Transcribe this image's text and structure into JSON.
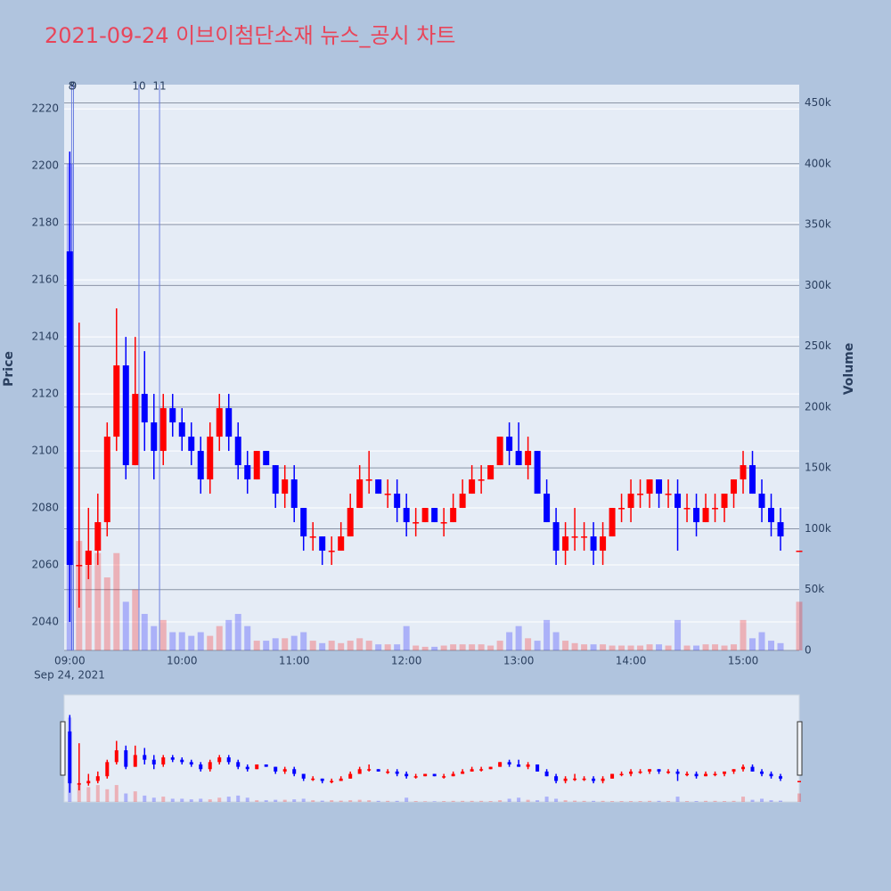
{
  "chart_data": {
    "type": "candlestick",
    "title": "2021-09-24 이브이첨단소재 뉴스_공시 차트",
    "ylabel": "Price",
    "y2label": "Volume",
    "date_label": "Sep 24, 2021",
    "increasing_color": "#ff0000",
    "decreasing_color": "#0000ff",
    "grid": true,
    "xlim": [
      "08:57",
      "15:30"
    ],
    "xticks": [
      "09:00",
      "10:00",
      "11:00",
      "12:00",
      "13:00",
      "14:00",
      "15:00"
    ],
    "ylim": [
      2030,
      2228.5
    ],
    "yticks": [
      2040,
      2060,
      2080,
      2100,
      2120,
      2140,
      2160,
      2180,
      2200,
      2220
    ],
    "y2lim": [
      0,
      465000
    ],
    "y2ticks": [
      0,
      {
        "value": 50000,
        "label": "50k"
      },
      {
        "value": 100000,
        "label": "100k"
      },
      {
        "value": 150000,
        "label": "150k"
      },
      {
        "value": 200000,
        "label": "200k"
      },
      {
        "value": 250000,
        "label": "250k"
      },
      {
        "value": 300000,
        "label": "300k"
      },
      {
        "value": 350000,
        "label": "350k"
      },
      {
        "value": 400000,
        "label": "400k"
      },
      {
        "value": 450000,
        "label": "450k"
      }
    ],
    "annotations": [
      {
        "x": "09:01",
        "label": "8"
      },
      {
        "x": "09:02",
        "label": "9"
      },
      {
        "x": "09:37",
        "label": "10"
      },
      {
        "x": "09:48",
        "label": "11"
      }
    ],
    "x": [
      "09:00",
      "09:05",
      "09:10",
      "09:15",
      "09:20",
      "09:25",
      "09:30",
      "09:35",
      "09:40",
      "09:45",
      "09:50",
      "09:55",
      "10:00",
      "10:05",
      "10:10",
      "10:15",
      "10:20",
      "10:25",
      "10:30",
      "10:35",
      "10:40",
      "10:45",
      "10:50",
      "10:55",
      "11:00",
      "11:05",
      "11:10",
      "11:15",
      "11:20",
      "11:25",
      "11:30",
      "11:35",
      "11:40",
      "11:45",
      "11:50",
      "11:55",
      "12:00",
      "12:05",
      "12:10",
      "12:15",
      "12:20",
      "12:25",
      "12:30",
      "12:35",
      "12:40",
      "12:45",
      "12:50",
      "12:55",
      "13:00",
      "13:05",
      "13:10",
      "13:15",
      "13:20",
      "13:25",
      "13:30",
      "13:35",
      "13:40",
      "13:45",
      "13:50",
      "13:55",
      "14:00",
      "14:05",
      "14:10",
      "14:15",
      "14:20",
      "14:25",
      "14:30",
      "14:35",
      "14:40",
      "14:45",
      "14:50",
      "14:55",
      "15:00",
      "15:05",
      "15:10",
      "15:15",
      "15:20",
      "15:30"
    ],
    "open": [
      2170,
      2060,
      2060,
      2065,
      2075,
      2105,
      2130,
      2095,
      2120,
      2110,
      2100,
      2115,
      2110,
      2105,
      2100,
      2090,
      2105,
      2115,
      2105,
      2095,
      2090,
      2100,
      2095,
      2085,
      2090,
      2080,
      2070,
      2070,
      2065,
      2065,
      2070,
      2080,
      2090,
      2090,
      2085,
      2085,
      2080,
      2075,
      2075,
      2080,
      2075,
      2075,
      2080,
      2085,
      2090,
      2090,
      2095,
      2105,
      2100,
      2095,
      2100,
      2085,
      2075,
      2065,
      2070,
      2070,
      2070,
      2065,
      2070,
      2080,
      2080,
      2085,
      2085,
      2090,
      2085,
      2085,
      2080,
      2080,
      2075,
      2080,
      2080,
      2085,
      2090,
      2095,
      2085,
      2080,
      2075,
      2065
    ],
    "high": [
      2205,
      2145,
      2080,
      2085,
      2110,
      2150,
      2140,
      2140,
      2135,
      2120,
      2120,
      2120,
      2115,
      2110,
      2105,
      2110,
      2120,
      2120,
      2110,
      2100,
      2100,
      2100,
      2095,
      2095,
      2095,
      2080,
      2075,
      2070,
      2070,
      2075,
      2085,
      2095,
      2100,
      2090,
      2090,
      2090,
      2085,
      2080,
      2080,
      2080,
      2080,
      2085,
      2090,
      2095,
      2095,
      2095,
      2105,
      2110,
      2110,
      2105,
      2100,
      2090,
      2080,
      2075,
      2080,
      2075,
      2075,
      2075,
      2080,
      2085,
      2090,
      2090,
      2090,
      2090,
      2090,
      2090,
      2085,
      2085,
      2085,
      2085,
      2085,
      2090,
      2100,
      2100,
      2090,
      2085,
      2080,
      2065
    ],
    "low": [
      2040,
      2045,
      2055,
      2060,
      2070,
      2100,
      2090,
      2095,
      2100,
      2090,
      2095,
      2105,
      2100,
      2095,
      2085,
      2085,
      2100,
      2100,
      2090,
      2085,
      2090,
      2095,
      2080,
      2080,
      2075,
      2065,
      2065,
      2060,
      2060,
      2065,
      2070,
      2080,
      2085,
      2085,
      2080,
      2075,
      2070,
      2070,
      2075,
      2075,
      2070,
      2075,
      2080,
      2085,
      2085,
      2090,
      2095,
      2095,
      2095,
      2090,
      2085,
      2075,
      2060,
      2060,
      2065,
      2065,
      2060,
      2060,
      2070,
      2075,
      2075,
      2080,
      2080,
      2080,
      2080,
      2065,
      2075,
      2070,
      2075,
      2075,
      2075,
      2080,
      2085,
      2085,
      2075,
      2070,
      2065,
      2065
    ],
    "close": [
      2060,
      2060,
      2065,
      2075,
      2105,
      2130,
      2095,
      2120,
      2110,
      2100,
      2115,
      2110,
      2105,
      2100,
      2090,
      2105,
      2115,
      2105,
      2095,
      2090,
      2100,
      2095,
      2085,
      2090,
      2080,
      2070,
      2070,
      2065,
      2065,
      2070,
      2080,
      2090,
      2090,
      2085,
      2085,
      2080,
      2075,
      2075,
      2080,
      2075,
      2075,
      2080,
      2085,
      2090,
      2090,
      2095,
      2105,
      2100,
      2095,
      2100,
      2085,
      2075,
      2065,
      2070,
      2070,
      2070,
      2065,
      2070,
      2080,
      2080,
      2085,
      2085,
      2090,
      2085,
      2085,
      2080,
      2080,
      2075,
      2080,
      2080,
      2085,
      2090,
      2095,
      2085,
      2080,
      2075,
      2070,
      2065
    ],
    "volume": [
      400000,
      90000,
      70000,
      80000,
      60000,
      80000,
      40000,
      50000,
      30000,
      20000,
      25000,
      15000,
      15000,
      12000,
      15000,
      12000,
      20000,
      25000,
      30000,
      20000,
      8000,
      8000,
      10000,
      10000,
      12000,
      15000,
      8000,
      6000,
      8000,
      6000,
      8000,
      10000,
      8000,
      5000,
      5000,
      5000,
      20000,
      4000,
      3000,
      3000,
      4000,
      5000,
      5000,
      5000,
      5000,
      4000,
      8000,
      15000,
      20000,
      10000,
      8000,
      25000,
      15000,
      8000,
      6000,
      5000,
      5000,
      5000,
      4000,
      4000,
      4000,
      4000,
      5000,
      5000,
      4000,
      25000,
      4000,
      4000,
      5000,
      5000,
      4000,
      5000,
      25000,
      10000,
      15000,
      8000,
      6000,
      40000
    ]
  }
}
